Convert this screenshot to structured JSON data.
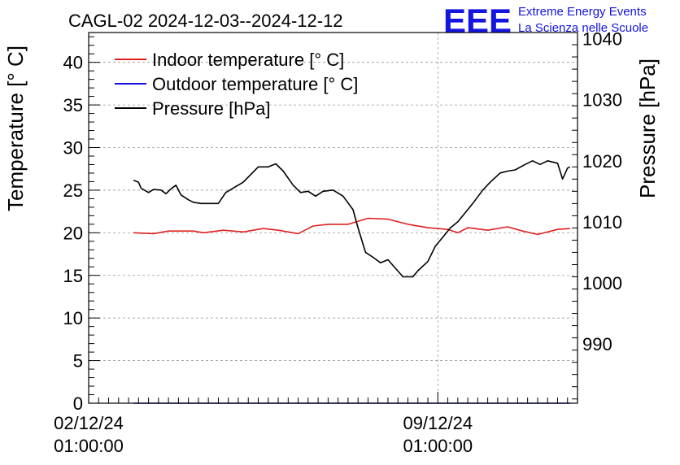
{
  "chart_data": {
    "type": "line",
    "title": "CAGL-02 2024-12-03--2024-12-12",
    "logo": {
      "text": "EEE",
      "line1": "Extreme Energy Events",
      "line2": "La Scienza nelle Scuole",
      "color": "#1515e0"
    },
    "ylabel_left": "Temperature [° C]",
    "ylabel_right": "Pressure [hPa]",
    "xlim": [
      0,
      9.8
    ],
    "ylim_left": [
      0,
      43.5
    ],
    "ylim_right": [
      980.3,
      1041
    ],
    "grid": true,
    "legend_position": "top-left",
    "x_ticks": [
      {
        "x": 0,
        "line1": "02/12/24",
        "line2": "01:00:00"
      },
      {
        "x": 7,
        "line1": "09/12/24",
        "line2": "01:00:00"
      }
    ],
    "y_ticks_left": [
      0,
      5,
      10,
      15,
      20,
      25,
      30,
      35,
      40
    ],
    "y_ticks_right": [
      990,
      1000,
      1010,
      1020,
      1030,
      1040
    ],
    "series": [
      {
        "name": "Indoor temperature [° C]",
        "axis": "left",
        "color": "#e02020",
        "x": [
          0.9,
          1.3,
          1.6,
          2.1,
          2.3,
          2.7,
          3.1,
          3.5,
          3.8,
          4.2,
          4.5,
          4.8,
          5.2,
          5.6,
          6.0,
          6.4,
          6.8,
          7.2,
          7.4,
          7.6,
          8.0,
          8.4,
          8.7,
          9.0,
          9.4,
          9.65
        ],
        "y": [
          20.0,
          19.9,
          20.2,
          20.2,
          20.0,
          20.3,
          20.1,
          20.5,
          20.3,
          19.9,
          20.8,
          21.0,
          21.0,
          21.7,
          21.6,
          21.0,
          20.6,
          20.4,
          20.0,
          20.6,
          20.3,
          20.7,
          20.2,
          19.8,
          20.4,
          20.5
        ]
      },
      {
        "name": "Outdoor temperature [° C]",
        "axis": "left",
        "color": "#1010e0",
        "x": [
          0.9,
          9.65
        ],
        "y": [
          0.0,
          0.0
        ]
      },
      {
        "name": "Pressure [hPa]",
        "axis": "right",
        "color": "#000000",
        "x": [
          0.9,
          1.0,
          1.05,
          1.2,
          1.3,
          1.45,
          1.55,
          1.65,
          1.75,
          1.85,
          2.0,
          2.1,
          2.25,
          2.6,
          2.75,
          3.1,
          3.4,
          3.6,
          3.75,
          3.9,
          4.1,
          4.25,
          4.4,
          4.55,
          4.7,
          4.9,
          5.1,
          5.3,
          5.4,
          5.55,
          5.7,
          5.85,
          6.0,
          6.3,
          6.5,
          6.6,
          6.8,
          6.95,
          7.1,
          7.25,
          7.4,
          7.55,
          7.7,
          7.9,
          8.05,
          8.25,
          8.4,
          8.55,
          8.75,
          8.9,
          9.05,
          9.2,
          9.4,
          9.5,
          9.6,
          9.65
        ],
        "y": [
          1016.8,
          1016.5,
          1015.5,
          1014.8,
          1015.3,
          1015.2,
          1014.6,
          1015.4,
          1016.0,
          1014.4,
          1013.6,
          1013.2,
          1013.0,
          1013.0,
          1014.8,
          1016.5,
          1019.0,
          1019.0,
          1019.5,
          1018.3,
          1016.0,
          1014.8,
          1015.0,
          1014.2,
          1015.0,
          1015.2,
          1014.2,
          1012.0,
          1009.0,
          1005.0,
          1004.2,
          1003.3,
          1003.8,
          1001.0,
          1001.0,
          1002.0,
          1003.5,
          1006.0,
          1007.5,
          1009.0,
          1010.0,
          1011.5,
          1013.0,
          1015.2,
          1016.5,
          1018.0,
          1018.3,
          1018.5,
          1019.4,
          1020.0,
          1019.4,
          1020.0,
          1019.6,
          1017.0,
          1018.8,
          1019.0
        ]
      }
    ]
  }
}
